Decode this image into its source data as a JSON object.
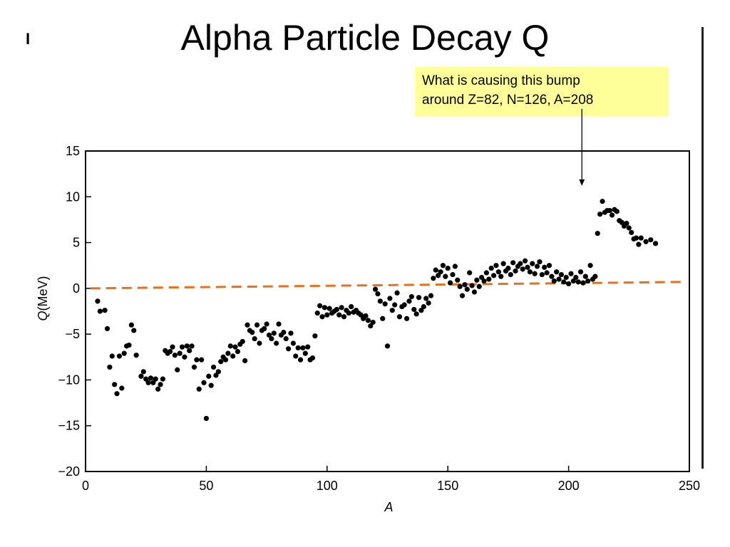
{
  "slide": {
    "title": "Alpha Particle Decay Q",
    "mark": "I"
  },
  "callout": {
    "line1": "What is causing this bump",
    "line2": "around Z=82, N=126, A=208"
  },
  "colors": {
    "points": "#000000",
    "reference_line": "#e8701a",
    "callout_bg": "#ffff99",
    "axes": "#000000"
  },
  "chart_data": {
    "type": "scatter",
    "title": "",
    "xlabel": "A",
    "ylabel_italic": "Q",
    "ylabel_unit": "(MeV)",
    "xlim": [
      0,
      250
    ],
    "ylim": [
      -20,
      15
    ],
    "xticks": [
      0,
      50,
      100,
      150,
      200,
      250
    ],
    "yticks": [
      15,
      10,
      5,
      0,
      -5,
      -10,
      -15,
      -20
    ],
    "ytick_labels": [
      "15",
      "10",
      "5",
      "0",
      "−5",
      "−10",
      "−15",
      "−20"
    ],
    "grid": false,
    "reference_line": {
      "style": "dashed",
      "x": [
        2,
        247
      ],
      "y": [
        0.0,
        0.7
      ]
    },
    "annotation_arrow": {
      "from": [
        205.5,
        19.6
      ],
      "to": [
        205.5,
        11.2
      ]
    },
    "points": [
      [
        5,
        -1.4
      ],
      [
        6,
        -2.5
      ],
      [
        8,
        -2.4
      ],
      [
        9,
        -4.4
      ],
      [
        10,
        -8.6
      ],
      [
        11,
        -7.4
      ],
      [
        12,
        -10.5
      ],
      [
        13,
        -11.5
      ],
      [
        14,
        -7.4
      ],
      [
        15,
        -10.9
      ],
      [
        16,
        -7.1
      ],
      [
        17,
        -6.3
      ],
      [
        18,
        -6.2
      ],
      [
        19,
        -4.0
      ],
      [
        20,
        -4.6
      ],
      [
        21,
        -7.3
      ],
      [
        23,
        -9.6
      ],
      [
        24,
        -9.1
      ],
      [
        25,
        -9.9
      ],
      [
        26,
        -10.3
      ],
      [
        27,
        -9.8
      ],
      [
        28,
        -10.3
      ],
      [
        29,
        -9.9
      ],
      [
        30,
        -11.0
      ],
      [
        31,
        -10.5
      ],
      [
        32,
        -9.9
      ],
      [
        33,
        -6.8
      ],
      [
        34,
        -7.1
      ],
      [
        35,
        -6.9
      ],
      [
        36,
        -6.4
      ],
      [
        37,
        -7.3
      ],
      [
        38,
        -8.9
      ],
      [
        39,
        -7.1
      ],
      [
        40,
        -6.4
      ],
      [
        41,
        -7.5
      ],
      [
        42,
        -6.3
      ],
      [
        43,
        -6.8
      ],
      [
        44,
        -6.3
      ],
      [
        45,
        -8.6
      ],
      [
        46,
        -7.8
      ],
      [
        47,
        -11.0
      ],
      [
        48,
        -7.8
      ],
      [
        49,
        -10.3
      ],
      [
        50,
        -14.2
      ],
      [
        51,
        -9.6
      ],
      [
        52,
        -10.6
      ],
      [
        53,
        -8.6
      ],
      [
        54,
        -9.5
      ],
      [
        55,
        -9.1
      ],
      [
        56,
        -8.0
      ],
      [
        57,
        -7.5
      ],
      [
        58,
        -7.8
      ],
      [
        59,
        -7.1
      ],
      [
        60,
        -6.3
      ],
      [
        61,
        -7.4
      ],
      [
        62,
        -6.4
      ],
      [
        63,
        -6.9
      ],
      [
        64,
        -6.1
      ],
      [
        65,
        -5.8
      ],
      [
        66,
        -7.9
      ],
      [
        67,
        -4.0
      ],
      [
        68,
        -4.6
      ],
      [
        69,
        -4.8
      ],
      [
        70,
        -5.5
      ],
      [
        71,
        -4.0
      ],
      [
        72,
        -6.0
      ],
      [
        73,
        -4.6
      ],
      [
        74,
        -4.4
      ],
      [
        75,
        -3.9
      ],
      [
        76,
        -5.1
      ],
      [
        77,
        -5.5
      ],
      [
        78,
        -4.9
      ],
      [
        79,
        -6.0
      ],
      [
        80,
        -3.9
      ],
      [
        81,
        -5.1
      ],
      [
        82,
        -4.8
      ],
      [
        83,
        -5.5
      ],
      [
        84,
        -6.6
      ],
      [
        85,
        -4.9
      ],
      [
        86,
        -6.0
      ],
      [
        87,
        -7.4
      ],
      [
        88,
        -6.5
      ],
      [
        89,
        -7.8
      ],
      [
        90,
        -6.5
      ],
      [
        91,
        -7.1
      ],
      [
        92,
        -6.4
      ],
      [
        93,
        -7.8
      ],
      [
        94,
        -7.6
      ],
      [
        95,
        -5.2
      ],
      [
        96,
        -2.7
      ],
      [
        97,
        -1.9
      ],
      [
        98,
        -3.1
      ],
      [
        99,
        -2.1
      ],
      [
        100,
        -2.9
      ],
      [
        101,
        -2.2
      ],
      [
        102,
        -2.7
      ],
      [
        103,
        -2.5
      ],
      [
        104,
        -2.3
      ],
      [
        105,
        -2.9
      ],
      [
        106,
        -2.1
      ],
      [
        107,
        -3.1
      ],
      [
        108,
        -2.4
      ],
      [
        109,
        -2.7
      ],
      [
        110,
        -2.0
      ],
      [
        111,
        -2.6
      ],
      [
        112,
        -2.4
      ],
      [
        113,
        -2.7
      ],
      [
        114,
        -2.9
      ],
      [
        115,
        -3.3
      ],
      [
        116,
        -3.0
      ],
      [
        117,
        -3.5
      ],
      [
        118,
        -4.1
      ],
      [
        119,
        -3.7
      ],
      [
        120,
        -0.1
      ],
      [
        121,
        -0.6
      ],
      [
        122,
        -1.4
      ],
      [
        123,
        -3.3
      ],
      [
        124,
        -1.7
      ],
      [
        125,
        -6.3
      ],
      [
        126,
        -1.1
      ],
      [
        127,
        -2.4
      ],
      [
        128,
        -1.8
      ],
      [
        129,
        -0.5
      ],
      [
        130,
        -3.1
      ],
      [
        131,
        -2.0
      ],
      [
        132,
        -1.8
      ],
      [
        133,
        -3.3
      ],
      [
        134,
        -1.4
      ],
      [
        135,
        -0.9
      ],
      [
        136,
        -2.3
      ],
      [
        137,
        -2.8
      ],
      [
        138,
        -1.0
      ],
      [
        139,
        -2.4
      ],
      [
        140,
        -2.0
      ],
      [
        141,
        -1.1
      ],
      [
        142,
        -1.6
      ],
      [
        143,
        -0.8
      ],
      [
        144,
        1.1
      ],
      [
        145,
        2.0
      ],
      [
        146,
        1.4
      ],
      [
        147,
        1.8
      ],
      [
        148,
        2.5
      ],
      [
        149,
        1.3
      ],
      [
        150,
        2.2
      ],
      [
        151,
        0.6
      ],
      [
        152,
        1.5
      ],
      [
        153,
        2.4
      ],
      [
        154,
        0.9
      ],
      [
        155,
        0.2
      ],
      [
        156,
        -0.8
      ],
      [
        157,
        0.4
      ],
      [
        158,
        -0.1
      ],
      [
        159,
        1.7
      ],
      [
        160,
        0.3
      ],
      [
        161,
        -0.4
      ],
      [
        162,
        0.9
      ],
      [
        163,
        0.2
      ],
      [
        164,
        1.2
      ],
      [
        165,
        0.8
      ],
      [
        166,
        1.7
      ],
      [
        167,
        1.0
      ],
      [
        168,
        2.2
      ],
      [
        169,
        1.4
      ],
      [
        170,
        2.5
      ],
      [
        171,
        1.8
      ],
      [
        172,
        1.3
      ],
      [
        173,
        2.7
      ],
      [
        174,
        1.9
      ],
      [
        175,
        2.2
      ],
      [
        176,
        1.5
      ],
      [
        177,
        2.8
      ],
      [
        178,
        1.9
      ],
      [
        179,
        2.4
      ],
      [
        180,
        2.7
      ],
      [
        181,
        2.1
      ],
      [
        182,
        3.0
      ],
      [
        183,
        2.3
      ],
      [
        184,
        1.8
      ],
      [
        185,
        2.7
      ],
      [
        186,
        1.6
      ],
      [
        187,
        2.4
      ],
      [
        188,
        2.9
      ],
      [
        189,
        1.5
      ],
      [
        190,
        2.3
      ],
      [
        191,
        1.7
      ],
      [
        192,
        2.5
      ],
      [
        193,
        1.3
      ],
      [
        194,
        0.8
      ],
      [
        195,
        1.8
      ],
      [
        196,
        1.0
      ],
      [
        197,
        1.5
      ],
      [
        198,
        0.7
      ],
      [
        199,
        1.2
      ],
      [
        200,
        0.5
      ],
      [
        201,
        1.6
      ],
      [
        202,
        0.8
      ],
      [
        203,
        1.2
      ],
      [
        204,
        0.7
      ],
      [
        205,
        1.8
      ],
      [
        206,
        0.6
      ],
      [
        207,
        1.3
      ],
      [
        208,
        0.8
      ],
      [
        209,
        2.5
      ],
      [
        210,
        1.0
      ],
      [
        211,
        1.3
      ],
      [
        212,
        6.0
      ],
      [
        213,
        8.1
      ],
      [
        214,
        9.5
      ],
      [
        215,
        8.3
      ],
      [
        216,
        8.5
      ],
      [
        217,
        8.5
      ],
      [
        218,
        8.0
      ],
      [
        219,
        8.6
      ],
      [
        220,
        8.4
      ],
      [
        221,
        7.4
      ],
      [
        222,
        7.2
      ],
      [
        223,
        6.8
      ],
      [
        224,
        7.1
      ],
      [
        225,
        6.6
      ],
      [
        226,
        6.1
      ],
      [
        227,
        5.4
      ],
      [
        228,
        5.5
      ],
      [
        229,
        4.8
      ],
      [
        230,
        5.5
      ],
      [
        232,
        5.1
      ],
      [
        234,
        5.3
      ],
      [
        236,
        4.9
      ]
    ]
  }
}
